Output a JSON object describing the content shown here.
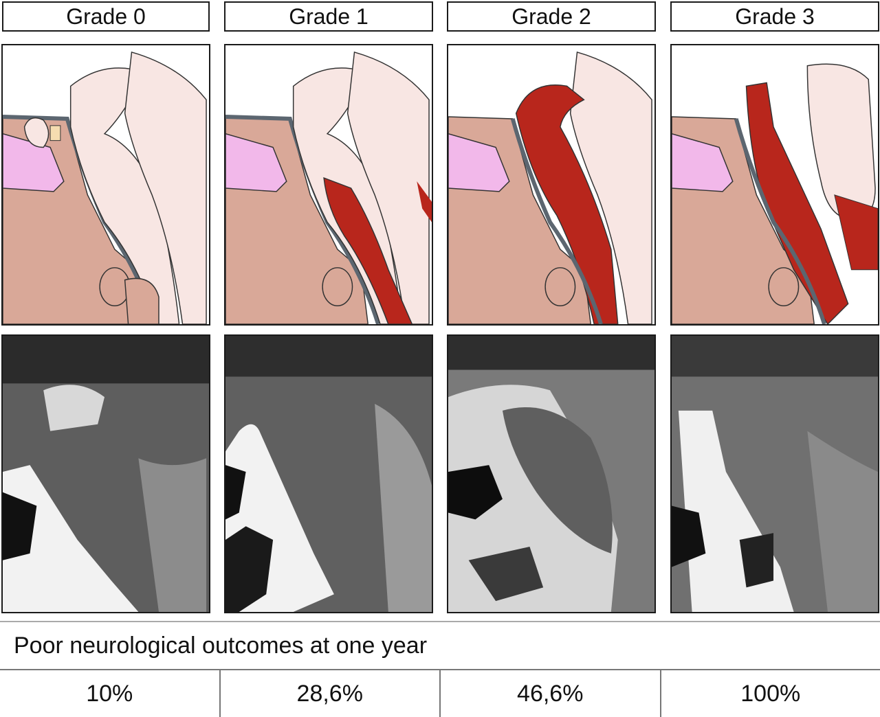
{
  "grades": [
    {
      "label": "Grade 0",
      "outcome": "10%"
    },
    {
      "label": "Grade 1",
      "outcome": "28,6%"
    },
    {
      "label": "Grade 2",
      "outcome": "46,6%"
    },
    {
      "label": "Grade 3",
      "outcome": "100%"
    }
  ],
  "table": {
    "header": "Poor neurological outcomes at one year"
  },
  "colors": {
    "tissue": "#f8e6e3",
    "bone": "#d9a898",
    "hemorrhage": "#b8261c",
    "sinus": "#f2b8ea",
    "vessel": "#5c6670"
  }
}
